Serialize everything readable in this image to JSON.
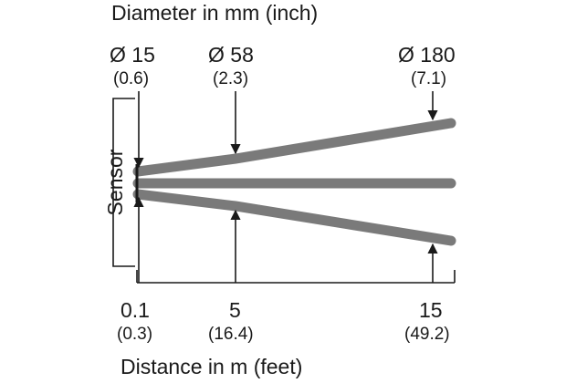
{
  "diagram": {
    "top_title": "Diameter in mm (inch)",
    "bottom_title": "Distance in m (feet)",
    "sensor_label": "Sensor",
    "diameters": [
      {
        "mm": "Ø 15",
        "inch": "(0.6)"
      },
      {
        "mm": "Ø 58",
        "inch": "(2.3)"
      },
      {
        "mm": "Ø 180",
        "inch": "(7.1)"
      }
    ],
    "distances": [
      {
        "m": "0.1",
        "feet": "(0.3)"
      },
      {
        "m": "5",
        "feet": "(16.4)"
      },
      {
        "m": "15",
        "feet": "(49.2)"
      }
    ],
    "colors": {
      "beam": "#7a7a7a",
      "line": "#1a1a1a"
    }
  }
}
